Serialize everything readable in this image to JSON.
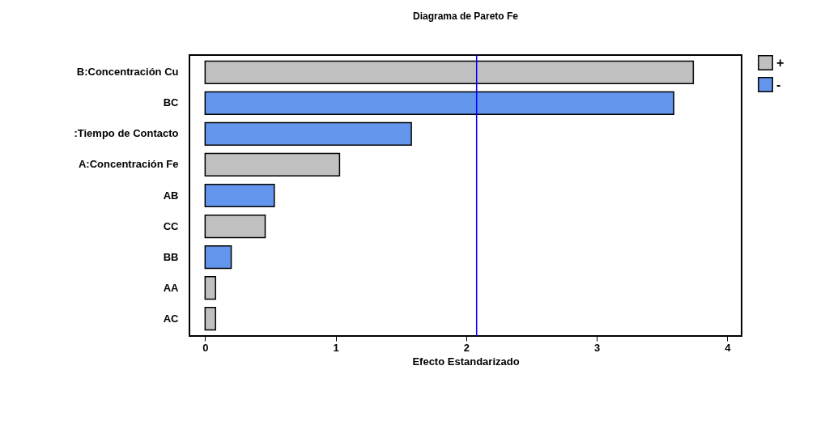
{
  "chart_data": {
    "type": "bar",
    "orientation": "horizontal",
    "title": "Diagrama de Pareto Fe",
    "xlabel": "Efecto Estandarizado",
    "categories": [
      "B:Concentración Cu",
      "BC",
      ":Tiempo de Contacto",
      "A:Concentración Fe",
      "AB",
      "CC",
      "BB",
      "AA",
      "AC"
    ],
    "series": [
      {
        "name": "+",
        "color": "#c0c0c0",
        "values": [
          3.74,
          null,
          null,
          1.03,
          null,
          0.46,
          null,
          0.08,
          0.08
        ]
      },
      {
        "name": "-",
        "color": "#6495ed",
        "values": [
          null,
          3.59,
          1.58,
          null,
          0.53,
          null,
          0.2,
          null,
          null
        ]
      }
    ],
    "xlim": [
      -0.12,
      4.11
    ],
    "xticks": [
      0,
      1,
      2,
      3,
      4
    ],
    "ref_lines": [
      {
        "axis": "x",
        "value": 2.08,
        "color": "#0000ff"
      }
    ],
    "grid": false,
    "legend": "top right"
  }
}
